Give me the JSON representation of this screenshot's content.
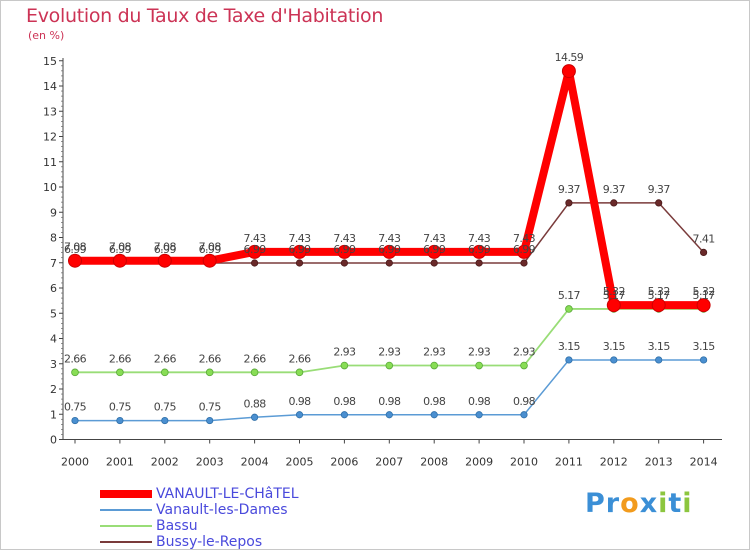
{
  "title": "Evolution du Taux de Taxe d'Habitation",
  "unit_label": "(en %)",
  "logo": {
    "text": "Proxiti",
    "letters": [
      {
        "ch": "P",
        "color": "#3b8fd6"
      },
      {
        "ch": "r",
        "color": "#3b8fd6"
      },
      {
        "ch": "o",
        "color": "#f29b1d"
      },
      {
        "ch": "x",
        "color": "#3b8fd6"
      },
      {
        "ch": "i",
        "color": "#8cc63f"
      },
      {
        "ch": "t",
        "color": "#3b8fd6"
      },
      {
        "ch": "i",
        "color": "#8cc63f"
      }
    ]
  },
  "chart_data": {
    "type": "line",
    "title": "Evolution du Taux de Taxe d'Habitation",
    "ylabel": "(en %)",
    "xlabel": "",
    "x": [
      "2000",
      "2001",
      "2002",
      "2003",
      "2004",
      "2005",
      "2006",
      "2007",
      "2008",
      "2009",
      "2010",
      "2011",
      "2012",
      "2013",
      "2014"
    ],
    "ylim": [
      0,
      15
    ],
    "yticks": [
      0,
      1,
      2,
      3,
      4,
      5,
      6,
      7,
      8,
      9,
      10,
      11,
      12,
      13,
      14,
      15
    ],
    "grid": false,
    "legend_position": "bottom-left",
    "series": [
      {
        "name": "VANAULT-LE-CHâTEL",
        "color": "#ff0000",
        "values": [
          7.08,
          7.08,
          7.08,
          7.08,
          7.43,
          7.43,
          7.43,
          7.43,
          7.43,
          7.43,
          7.43,
          14.59,
          5.32,
          5.32,
          5.32
        ],
        "labels": [
          "7.08",
          "7.08",
          "7.08",
          "7.08",
          "7.43",
          "7.43",
          "7.43",
          "7.43",
          "7.43",
          "7.43",
          "7.43",
          "14.59",
          "5.32",
          "5.32",
          "5.32"
        ]
      },
      {
        "name": "Vanault-les-Dames",
        "color": "#5b9bd5",
        "values": [
          0.75,
          0.75,
          0.75,
          0.75,
          0.88,
          0.98,
          0.98,
          0.98,
          0.98,
          0.98,
          0.98,
          3.15,
          3.15,
          3.15,
          3.15
        ],
        "labels": [
          "0.75",
          "0.75",
          "0.75",
          "0.75",
          "0.88",
          "0.98",
          "0.98",
          "0.98",
          "0.98",
          "0.98",
          "0.98",
          "3.15",
          "3.15",
          "3.15",
          "3.15"
        ]
      },
      {
        "name": "Bassu",
        "color": "#99dd77",
        "values": [
          2.66,
          2.66,
          2.66,
          2.66,
          2.66,
          2.66,
          2.93,
          2.93,
          2.93,
          2.93,
          2.93,
          5.17,
          5.17,
          5.17,
          5.17
        ],
        "labels": [
          "2.66",
          "2.66",
          "2.66",
          "2.66",
          "2.66",
          "2.66",
          "2.93",
          "2.93",
          "2.93",
          "2.93",
          "2.93",
          "5.17",
          "5.17",
          "5.17",
          "5.17"
        ]
      },
      {
        "name": "Bussy-le-Repos",
        "color": "#7a3b3b",
        "values": [
          6.99,
          6.99,
          6.99,
          6.99,
          6.99,
          6.99,
          6.99,
          6.99,
          6.99,
          6.99,
          6.99,
          9.37,
          9.37,
          9.37,
          7.41
        ],
        "labels": [
          "6.99",
          "6.99",
          "6.99",
          "6.99",
          "6.99",
          "6.99",
          "6.99",
          "6.99",
          "6.99",
          "6.99",
          "6.99",
          "9.37",
          "9.37",
          "9.37",
          "7.41"
        ]
      }
    ]
  }
}
